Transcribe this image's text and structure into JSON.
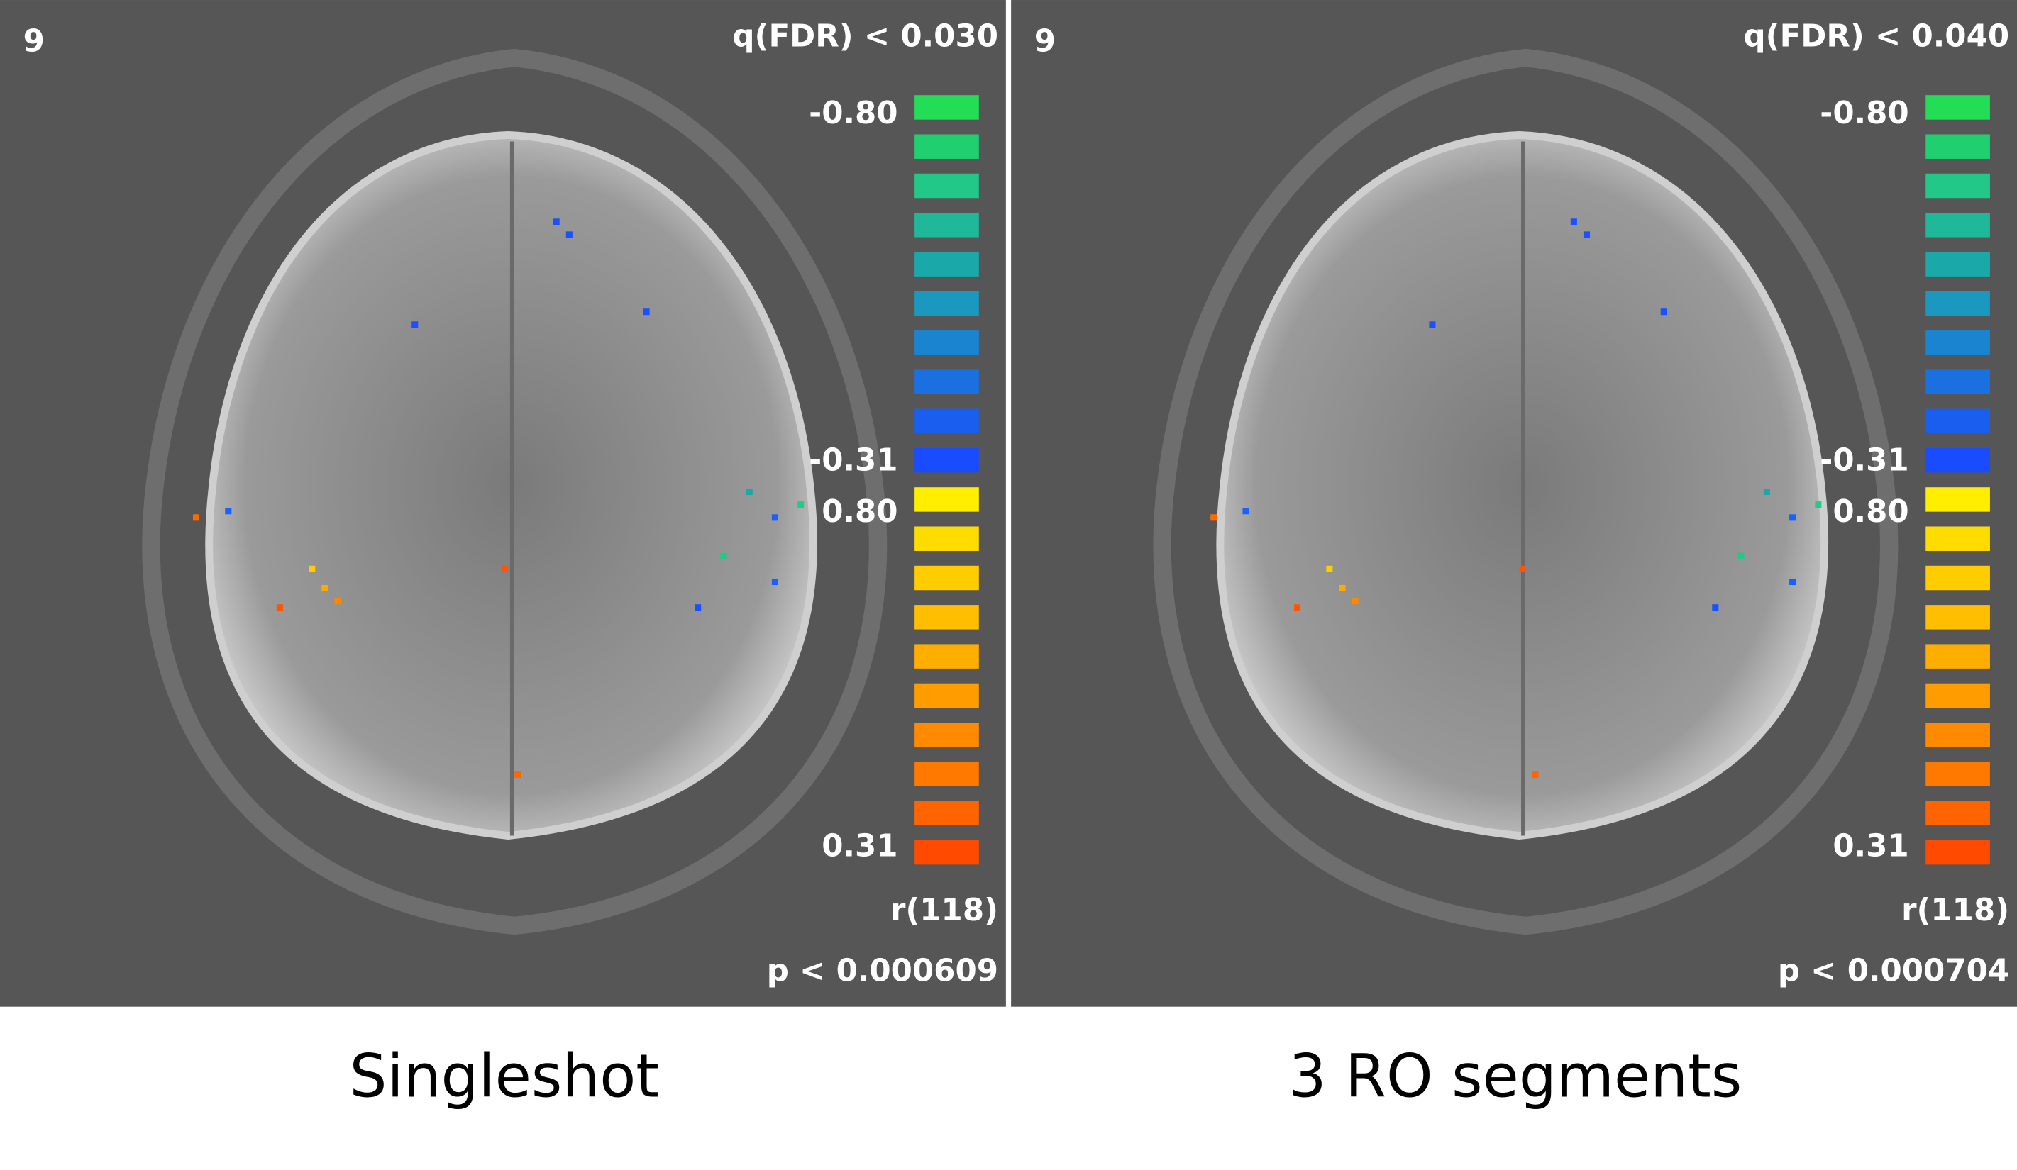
{
  "panels": [
    {
      "slice": "9",
      "q_label": "q(FDR) < 0.030",
      "neg_max": "-0.80",
      "neg_min": "-0.31",
      "pos_max": "0.80",
      "pos_min": "0.31",
      "stat_label": "r(118)",
      "p_label": "p < 0.000609",
      "caption": "Singleshot"
    },
    {
      "slice": "9",
      "q_label": "q(FDR) < 0.040",
      "neg_max": "-0.80",
      "neg_min": "-0.31",
      "pos_max": "0.80",
      "pos_min": "0.31",
      "stat_label": "r(118)",
      "p_label": "p < 0.000704",
      "caption": "3 RO segments"
    }
  ],
  "colorbar": [
    "#22dd55",
    "#20d070",
    "#22c888",
    "#1fb898",
    "#1aa8a8",
    "#1a98c0",
    "#1a84d0",
    "#1a70e0",
    "#1a5ef0",
    "#1a4cff",
    "#ffee00",
    "#ffdc00",
    "#ffcc00",
    "#ffbe00",
    "#ffae00",
    "#ff9c00",
    "#ff8a00",
    "#ff7800",
    "#ff6400",
    "#ff4a00"
  ]
}
